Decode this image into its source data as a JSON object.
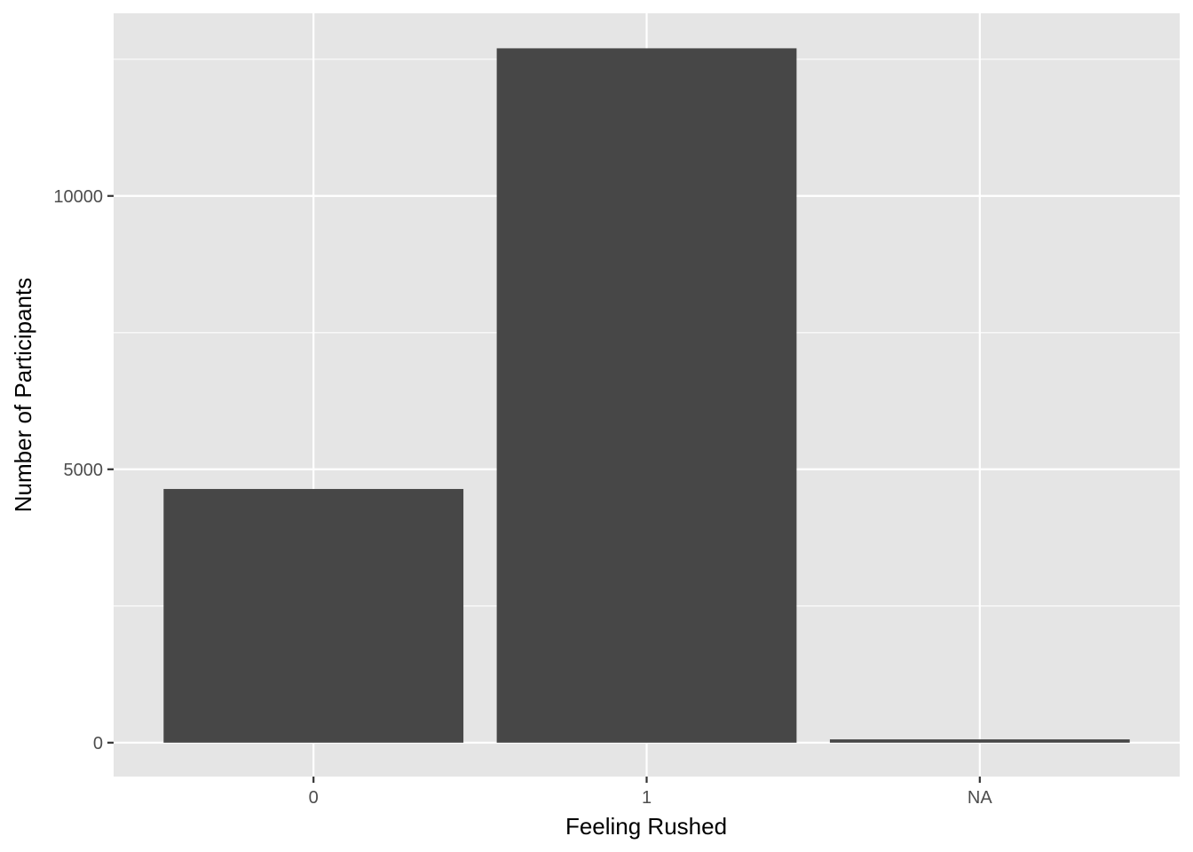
{
  "chart_data": {
    "type": "bar",
    "title": "",
    "xlabel": "Feeling Rushed",
    "ylabel": "Number of Participants",
    "categories": [
      "0",
      "1",
      "NA"
    ],
    "values": [
      4640,
      12700,
      60
    ],
    "ylim": [
      -620,
      13340
    ],
    "yticks": [
      0,
      5000,
      10000
    ],
    "ytick_labels": [
      "0",
      "5000",
      "10000"
    ],
    "grid": true,
    "legend": "none",
    "colors": {
      "bar": "#474747",
      "panel": "#e5e5e5",
      "grid": "#ffffff",
      "tick": "#333333",
      "tick_label": "#4d4d4d",
      "axis_title": "#000000"
    }
  }
}
